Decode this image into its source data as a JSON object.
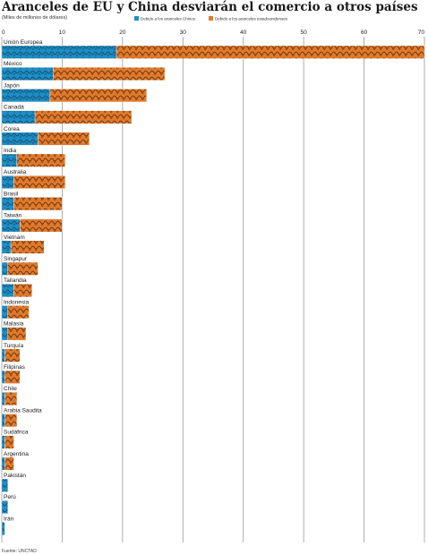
{
  "title": "Aranceles de EU y China desviarán el comercio a otros países",
  "subtitle": "(Miles de millones de dólares)",
  "source": "Fuente: UNCTAD",
  "colors": {
    "china_tariffs": "#1f8ec4",
    "us_tariffs": "#e07a2c",
    "gridline": "#9a9a9a",
    "text": "#1a1a1a"
  },
  "chart_data": {
    "type": "bar",
    "orientation": "horizontal",
    "stacked": true,
    "title": "Aranceles de EU y China desviarán el comercio a otros países",
    "subtitle": "(Miles de millones de dólares)",
    "xlabel": "",
    "ylabel": "",
    "xlim": [
      0,
      70
    ],
    "xticks": [
      0,
      10,
      20,
      30,
      40,
      50,
      60,
      70
    ],
    "grid": true,
    "legend_position": "top",
    "categories": [
      "Unión Europea",
      "México",
      "Japón",
      "Canadá",
      "Corea",
      "India",
      "Australia",
      "Brasil",
      "Taiwán",
      "Vietnam",
      "Singapur",
      "Tailandia",
      "Indonesia",
      "Malasia",
      "Turquía",
      "Filipinas",
      "Chile",
      "Arabia Saudita",
      "Sudáfrica",
      "Argentina",
      "Pakistán",
      "Perú",
      "Irán"
    ],
    "series": [
      {
        "name": "Debido a los aranceles Chinos",
        "color": "#1f8ec4",
        "values": [
          19,
          8.5,
          8,
          5.5,
          6,
          2.5,
          2,
          2,
          3,
          1.5,
          1,
          2,
          1,
          1,
          0.5,
          0.5,
          0.5,
          0.5,
          0.5,
          0.5,
          1,
          1,
          0.5
        ]
      },
      {
        "name": "Debido a los aranceles estadounidenses",
        "color": "#e07a2c",
        "values": [
          51,
          18.5,
          16,
          16,
          8.5,
          8,
          8.5,
          8,
          7,
          5.5,
          5,
          3,
          3.5,
          3,
          2.5,
          2.5,
          2,
          2,
          1.5,
          1.5,
          0,
          0,
          0
        ]
      }
    ]
  }
}
